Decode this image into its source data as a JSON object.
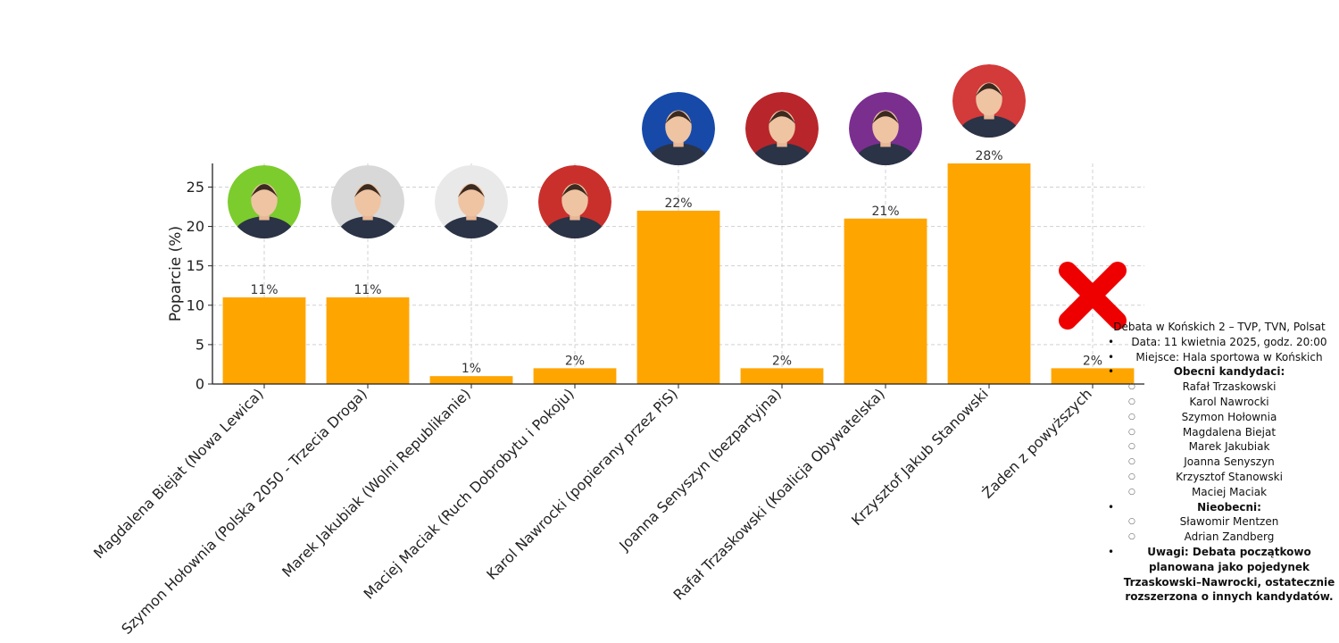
{
  "chart_data": {
    "type": "bar",
    "title": "",
    "xlabel": "",
    "ylabel": "Poparcie (%)",
    "ylim": [
      0,
      28
    ],
    "yticks": [
      0,
      5,
      10,
      15,
      20,
      25
    ],
    "grid": true,
    "bar_color": "#FFA500",
    "categories": [
      "Magdalena Biejat (Nowa Lewica)",
      "Szymon Hołownia (Polska 2050 - Trzecia Droga)",
      "Marek Jakubiak (Wolni Republikanie)",
      "Maciej Maciak (Ruch Dobrobytu i Pokoju)",
      "Karol Nawrocki (popierany przez PiS)",
      "Joanna Senyszyn (bezpartyjna)",
      "Rafał Trzaskowski (Koalicja Obywatelska)",
      "Krzysztof Jakub Stanowski",
      "Żaden z powyższych"
    ],
    "values": [
      11,
      11,
      1,
      2,
      22,
      2,
      21,
      28,
      2
    ],
    "value_labels": [
      "11%",
      "11%",
      "1%",
      "2%",
      "22%",
      "2%",
      "21%",
      "28%",
      "2%"
    ],
    "markers": [
      {
        "kind": "portrait",
        "bg": "#7ccc2e"
      },
      {
        "kind": "portrait",
        "bg": "#d8d8d8"
      },
      {
        "kind": "portrait",
        "bg": "#e9e9e9"
      },
      {
        "kind": "portrait",
        "bg": "#c9302c"
      },
      {
        "kind": "portrait",
        "bg": "#1749a8"
      },
      {
        "kind": "portrait",
        "bg": "#b8262b"
      },
      {
        "kind": "portrait",
        "bg": "#7a2f8f"
      },
      {
        "kind": "portrait",
        "bg": "#d33a3a"
      },
      {
        "kind": "cross-icon",
        "color": "#ee0000"
      }
    ]
  },
  "info": {
    "title": "Debata w Końskich 2 – TVP, TVN, Polsat",
    "date": "Data: 11 kwietnia 2025, godz. 20:00",
    "place": "Miejsce: Hala sportowa w Końskich",
    "present_heading": "Obecni kandydaci:",
    "present": [
      "Rafał Trzaskowski",
      "Karol Nawrocki",
      "Szymon Hołownia",
      "Magdalena Biejat",
      "Marek Jakubiak",
      "Joanna Senyszyn",
      "Krzysztof Stanowski",
      "Maciej Maciak"
    ],
    "absent_heading": "Nieobecni:",
    "absent": [
      "Sławomir Mentzen",
      "Adrian Zandberg"
    ],
    "note": "Uwagi: Debata początkowo planowana jako pojedynek Trzaskowski–Nawrocki, ostatecznie rozszerzona o innych kandydatów."
  }
}
